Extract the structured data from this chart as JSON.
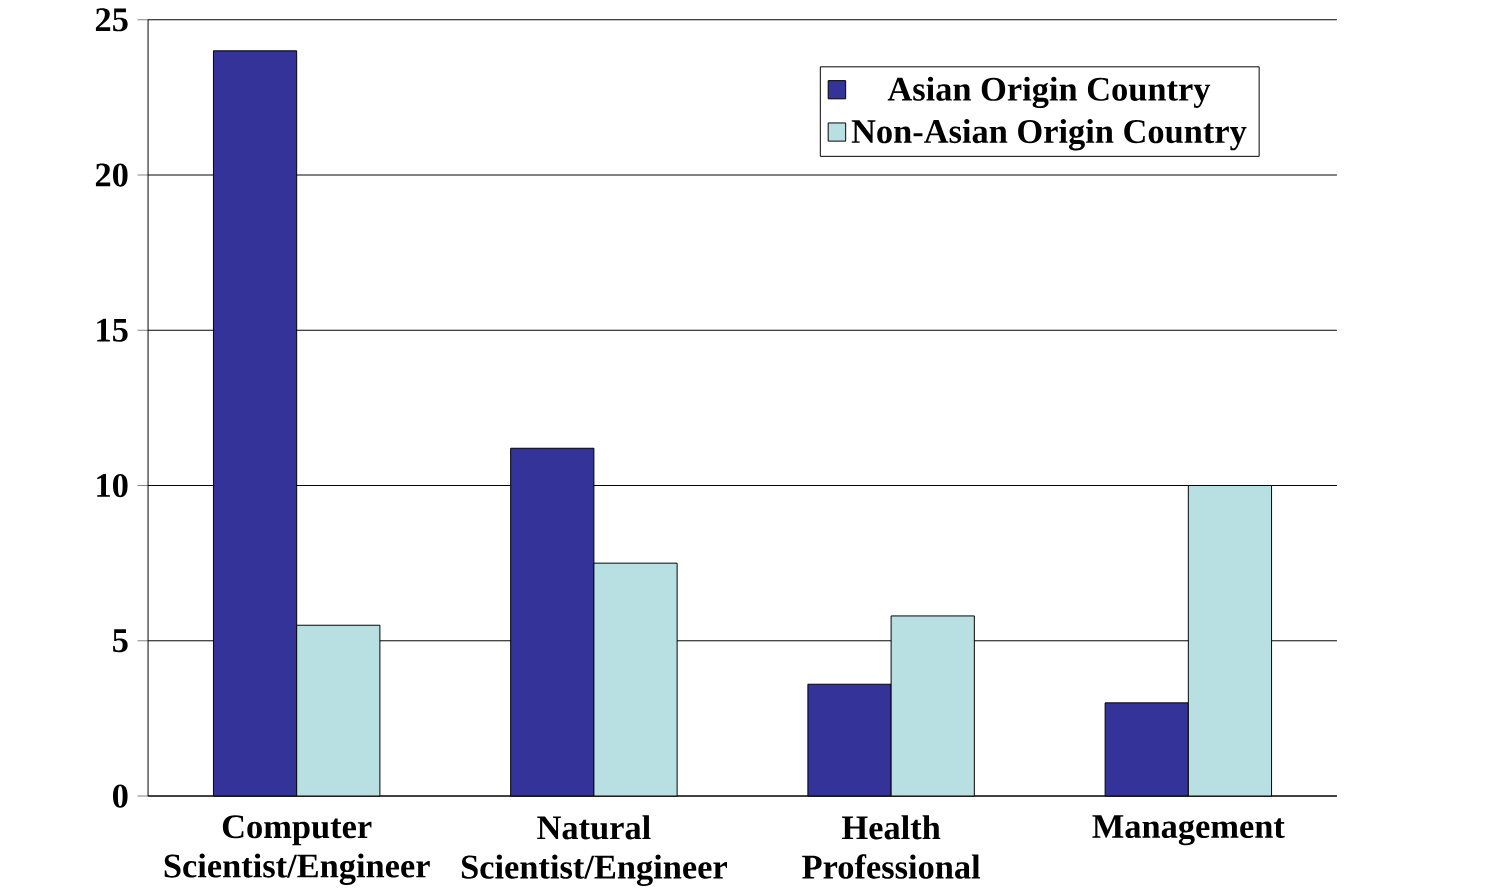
{
  "chart_data": {
    "type": "bar",
    "categories": [
      "Computer Scientist/Engineer",
      "Natural Scientist/Engineer",
      "Health Professional",
      "Management"
    ],
    "series": [
      {
        "name": "Asian Origin Country",
        "color": "#333399",
        "values": [
          24,
          11.2,
          3.6,
          3.0
        ]
      },
      {
        "name": "Non-Asian Origin Country",
        "color": "#b8e0e3",
        "values": [
          5.5,
          7.5,
          5.8,
          10.0
        ]
      }
    ],
    "ylim": [
      0,
      25
    ],
    "yticks": [
      0,
      5,
      10,
      15,
      20,
      25
    ],
    "grid": "y",
    "legend": "top"
  }
}
